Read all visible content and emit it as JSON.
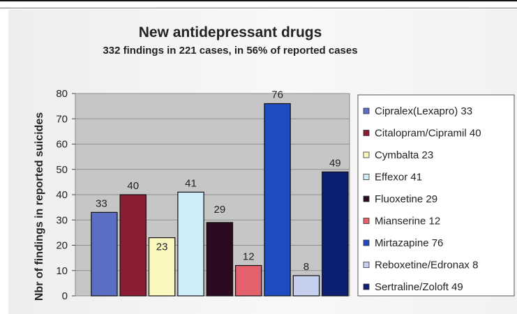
{
  "chart_data": {
    "type": "bar",
    "title": "New antidepressant drugs",
    "subtitle": "332 findings in 221 cases, in 56% of reported cases",
    "xlabel": "",
    "ylabel": "Nbr of findings in reported suicides",
    "ylim": [
      0,
      80
    ],
    "yticks": [
      0,
      10,
      20,
      30,
      40,
      50,
      60,
      70,
      80
    ],
    "grid": true,
    "legend_position": "right",
    "categories": [
      "Cipralex(Lexapro)",
      "Citalopram/Cipramil",
      "Cymbalta",
      "Effexor",
      "Fluoxetine",
      "Mianserine",
      "Mirtazapine",
      "Reboxetine/Edronax",
      "Sertraline/Zoloft"
    ],
    "values": [
      33,
      40,
      23,
      41,
      29,
      12,
      76,
      8,
      49
    ],
    "data_labels": [
      "33",
      "40",
      "23",
      "41",
      "29",
      "12",
      "76",
      "8",
      "49"
    ],
    "legend": [
      "Cipralex(Lexapro) 33",
      "Citalopram/Cipramil 40",
      "Cymbalta 23",
      "Effexor 41",
      "Fluoxetine 29",
      "Mianserine 12",
      "Mirtazapine 76",
      "Reboxetine/Edronax 8",
      "Sertraline/Zoloft 49"
    ],
    "colors": [
      "#5a6fc4",
      "#8c1c32",
      "#fbf8bf",
      "#cdeef9",
      "#2c0b22",
      "#e2616c",
      "#1f4cc0",
      "#c5cfee",
      "#0c1f73"
    ]
  }
}
